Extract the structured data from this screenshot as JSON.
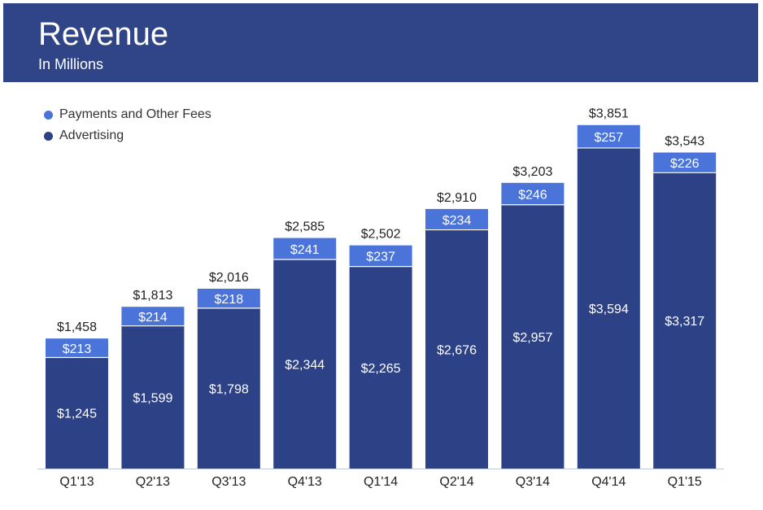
{
  "header": {
    "title": "Revenue",
    "subtitle": "In Millions"
  },
  "colors": {
    "header_bg": "#2f4588",
    "advertising": "#2d4186",
    "payments": "#4a74d9",
    "axis": "#bfc6d6",
    "label_dark": "#222222",
    "label_light": "#ffffff"
  },
  "chart_data": {
    "type": "bar",
    "stacked": true,
    "categories": [
      "Q1'13",
      "Q2'13",
      "Q3'13",
      "Q4'13",
      "Q1'14",
      "Q2'14",
      "Q3'14",
      "Q4'14",
      "Q1'15"
    ],
    "series": [
      {
        "name": "Advertising",
        "values": [
          1245,
          1599,
          1798,
          2344,
          2265,
          2676,
          2957,
          3594,
          3317
        ],
        "labels": [
          "$1,245",
          "$1,599",
          "$1,798",
          "$2,344",
          "$2,265",
          "$2,676",
          "$2,957",
          "$3,594",
          "$3,317"
        ]
      },
      {
        "name": "Payments and Other Fees",
        "values": [
          213,
          214,
          218,
          241,
          237,
          234,
          246,
          257,
          226
        ],
        "labels": [
          "$213",
          "$214",
          "$218",
          "$241",
          "$237",
          "$234",
          "$246",
          "$257",
          "$226"
        ]
      }
    ],
    "totals": [
      1458,
      1813,
      2016,
      2585,
      2502,
      2910,
      3203,
      3851,
      3543
    ],
    "total_labels": [
      "$1,458",
      "$1,813",
      "$2,016",
      "$2,585",
      "$2,502",
      "$2,910",
      "$3,203",
      "$3,851",
      "$3,543"
    ],
    "legend": [
      "Payments and Other Fees",
      "Advertising"
    ],
    "legend_position": "top-left",
    "grid": false,
    "ylim": [
      0,
      4250
    ]
  }
}
